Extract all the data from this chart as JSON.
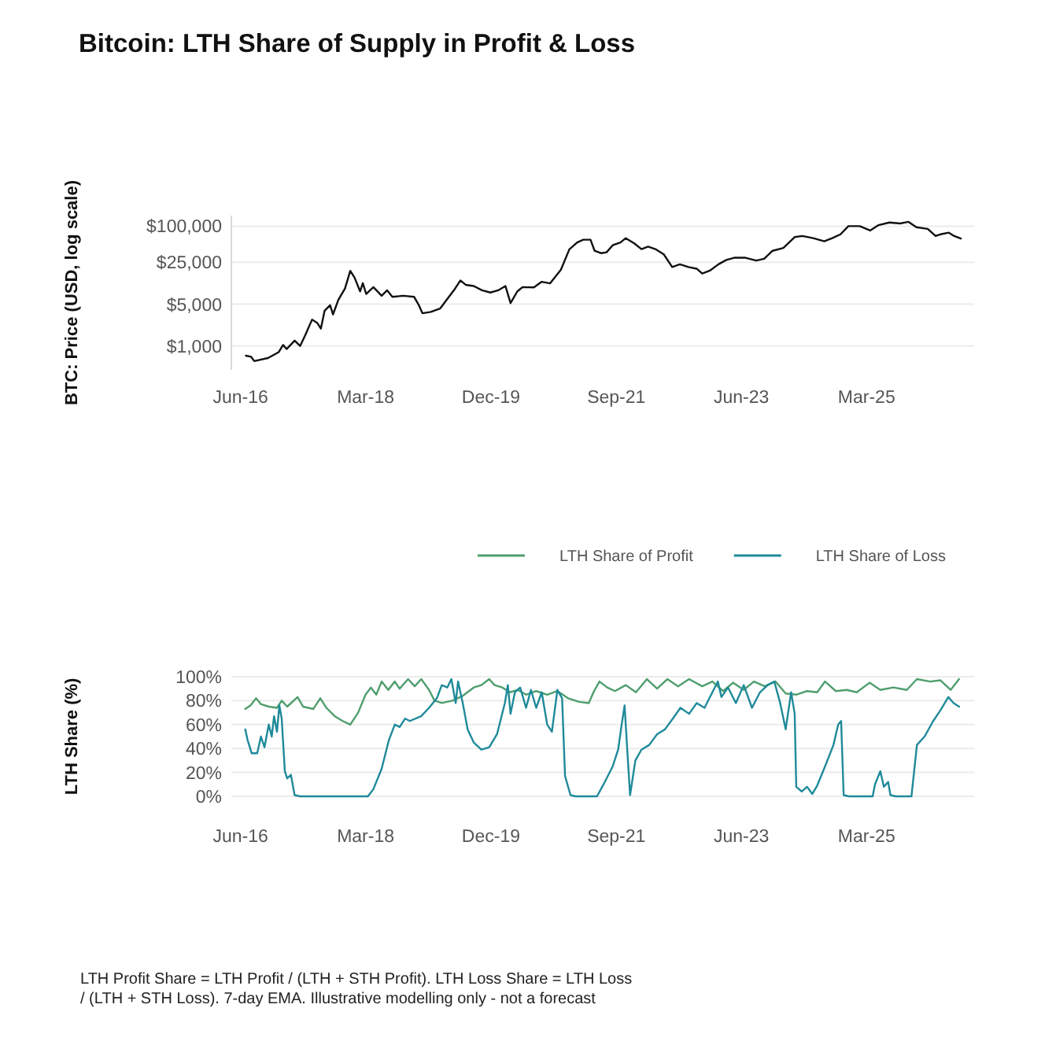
{
  "chart_data": [
    {
      "type": "line",
      "title": "Bitcoin: LTH Share of Supply in Profit & Loss",
      "ylabel": "BTC: Price (USD, log scale)",
      "log": true,
      "grid": "y",
      "color": "#111111",
      "xlim": [
        "2016-04-15",
        "2026-09-01"
      ],
      "ylim": [
        400,
        150000
      ],
      "xticks": [
        {
          "value": "2016-06-01",
          "label": "Jun-16"
        },
        {
          "value": "2018-03-01",
          "label": "Mar-18"
        },
        {
          "value": "2019-12-01",
          "label": "Dec-19"
        },
        {
          "value": "2021-09-01",
          "label": "Sep-21"
        },
        {
          "value": "2023-06-01",
          "label": "Jun-23"
        },
        {
          "value": "2025-03-01",
          "label": "Mar-25"
        }
      ],
      "yticks": [
        {
          "value": 1000,
          "label": "$1,000"
        },
        {
          "value": 5000,
          "label": "$5,000"
        },
        {
          "value": 25000,
          "label": "$25,000"
        },
        {
          "value": 100000,
          "label": "$100,000"
        }
      ],
      "x": [
        "2016-06-28",
        "2016-07-25",
        "2016-08-10",
        "2016-10-19",
        "2016-12-13",
        "2017-01-04",
        "2017-01-22",
        "2017-03-04",
        "2017-04-01",
        "2017-04-28",
        "2017-06-01",
        "2017-06-28",
        "2017-07-16",
        "2017-08-04",
        "2017-09-01",
        "2017-09-16",
        "2017-10-13",
        "2017-11-16",
        "2017-12-13",
        "2018-01-04",
        "2018-02-01",
        "2018-02-15",
        "2018-03-04",
        "2018-04-10",
        "2018-05-22",
        "2018-06-19",
        "2018-07-16",
        "2018-09-10",
        "2018-11-04",
        "2018-11-28",
        "2018-12-16",
        "2019-01-28",
        "2019-03-16",
        "2019-04-19",
        "2019-06-01",
        "2019-06-28",
        "2019-07-25",
        "2019-09-04",
        "2019-10-16",
        "2019-11-28",
        "2020-01-07",
        "2020-02-13",
        "2020-03-10",
        "2020-04-13",
        "2020-05-10",
        "2020-07-07",
        "2020-08-16",
        "2020-09-28",
        "2020-11-22",
        "2021-01-04",
        "2021-02-13",
        "2021-03-16",
        "2021-04-22",
        "2021-05-13",
        "2021-06-16",
        "2021-07-13",
        "2021-08-13",
        "2021-09-22",
        "2021-10-19",
        "2021-12-01",
        "2022-01-07",
        "2022-02-10",
        "2022-03-19",
        "2022-05-01",
        "2022-06-13",
        "2022-07-22",
        "2022-09-04",
        "2022-10-16",
        "2022-11-13",
        "2022-12-22",
        "2023-02-04",
        "2023-03-16",
        "2023-04-25",
        "2023-06-22",
        "2023-08-16",
        "2023-09-25",
        "2023-11-07",
        "2024-01-01",
        "2024-02-28",
        "2024-04-07",
        "2024-06-01",
        "2024-07-28",
        "2024-09-07",
        "2024-10-19",
        "2024-11-28",
        "2025-01-25",
        "2025-03-19",
        "2025-05-01",
        "2025-06-25",
        "2025-08-19",
        "2025-10-01",
        "2025-11-10",
        "2026-01-07",
        "2026-02-16",
        "2026-03-13",
        "2026-04-25",
        "2026-05-22",
        "2026-06-25"
      ],
      "values": [
        690,
        660,
        560,
        630,
        790,
        1040,
        890,
        1230,
        1000,
        1540,
        2760,
        2410,
        1950,
        3880,
        4800,
        3370,
        5870,
        9100,
        18000,
        13800,
        8150,
        11200,
        7400,
        9600,
        6900,
        8500,
        6600,
        6900,
        6600,
        4800,
        3520,
        3700,
        4200,
        5900,
        9100,
        12400,
        10500,
        10000,
        8500,
        7800,
        8500,
        10000,
        5200,
        8100,
        9600,
        9500,
        11800,
        11100,
        18800,
        41000,
        53500,
        59500,
        59500,
        38800,
        35400,
        36600,
        48000,
        53500,
        63000,
        51700,
        41400,
        45500,
        41400,
        33800,
        20800,
        23100,
        20800,
        19500,
        16200,
        18100,
        23100,
        27300,
        29700,
        29700,
        26600,
        28600,
        38800,
        43300,
        65700,
        68500,
        63000,
        55800,
        63000,
        73100,
        100000,
        100000,
        84600,
        104000,
        115000,
        111000,
        118000,
        96000,
        90000,
        68500,
        73100,
        77900,
        68500,
        62000
      ]
    },
    {
      "type": "line",
      "ylabel": "LTH Share (%)",
      "grid": "y",
      "legend": "top right",
      "xlim": [
        "2016-04-15",
        "2026-09-01"
      ],
      "ylim": [
        0,
        100
      ],
      "xticks": [
        {
          "value": "2016-06-01",
          "label": "Jun-16"
        },
        {
          "value": "2018-03-01",
          "label": "Mar-18"
        },
        {
          "value": "2019-12-01",
          "label": "Dec-19"
        },
        {
          "value": "2021-09-01",
          "label": "Sep-21"
        },
        {
          "value": "2023-06-01",
          "label": "Jun-23"
        },
        {
          "value": "2025-03-01",
          "label": "Mar-25"
        }
      ],
      "yticks": [
        {
          "value": 0,
          "label": "0%"
        },
        {
          "value": 20,
          "label": "20%"
        },
        {
          "value": 40,
          "label": "40%"
        },
        {
          "value": 60,
          "label": "60%"
        },
        {
          "value": 80,
          "label": "80%"
        },
        {
          "value": 100,
          "label": "100%"
        }
      ],
      "series": [
        {
          "name": "LTH Share of Profit",
          "color": "#4f9e6e",
          "x": [
            "2016-06-25",
            "2016-07-22",
            "2016-08-19",
            "2016-09-13",
            "2016-10-23",
            "2016-12-04",
            "2016-12-28",
            "2017-01-25",
            "2017-03-19",
            "2017-04-16",
            "2017-06-07",
            "2017-07-13",
            "2017-08-13",
            "2017-09-25",
            "2017-11-04",
            "2017-12-13",
            "2018-01-22",
            "2018-03-01",
            "2018-03-28",
            "2018-04-25",
            "2018-05-22",
            "2018-06-25",
            "2018-07-28",
            "2018-08-22",
            "2018-10-04",
            "2018-11-07",
            "2018-12-10",
            "2019-01-19",
            "2019-02-16",
            "2019-03-25",
            "2019-05-19",
            "2019-07-10",
            "2019-09-04",
            "2019-10-13",
            "2019-11-22",
            "2019-12-19",
            "2020-01-28",
            "2020-03-07",
            "2020-04-16",
            "2020-05-28",
            "2020-07-19",
            "2020-09-13",
            "2020-11-04",
            "2020-12-28",
            "2021-02-22",
            "2021-04-13",
            "2021-05-10",
            "2021-06-07",
            "2021-07-16",
            "2021-08-25",
            "2021-10-19",
            "2021-12-10",
            "2022-02-04",
            "2022-03-28",
            "2022-05-19",
            "2022-07-13",
            "2022-09-07",
            "2022-11-13",
            "2023-01-04",
            "2023-02-28",
            "2023-04-19",
            "2023-06-13",
            "2023-08-04",
            "2023-09-28",
            "2023-11-22",
            "2024-01-13",
            "2024-03-07",
            "2024-05-01",
            "2024-06-22",
            "2024-08-01",
            "2024-09-25",
            "2024-11-19",
            "2025-01-10",
            "2025-03-16",
            "2025-05-10",
            "2025-07-16",
            "2025-09-22",
            "2025-11-13",
            "2026-01-19",
            "2026-03-13",
            "2026-05-04",
            "2026-06-16"
          ],
          "values": [
            73,
            76,
            82,
            77,
            75,
            74,
            80,
            75,
            83,
            75,
            73,
            82,
            74,
            67,
            63,
            60,
            70,
            85,
            91,
            85,
            96,
            89,
            96,
            90,
            98,
            92,
            98,
            89,
            80,
            78,
            80,
            84,
            91,
            93,
            98,
            93,
            91,
            87,
            89,
            85,
            88,
            85,
            88,
            82,
            79,
            78,
            88,
            96,
            91,
            88,
            93,
            87,
            98,
            90,
            98,
            92,
            98,
            92,
            96,
            88,
            95,
            89,
            96,
            92,
            96,
            86,
            85,
            88,
            87,
            96,
            88,
            89,
            87,
            95,
            89,
            91,
            89,
            98,
            96,
            97,
            89,
            98
          ]
        },
        {
          "name": "LTH Share of Loss",
          "color": "#1f8a9a",
          "x": [
            "2016-06-25",
            "2016-07-07",
            "2016-07-28",
            "2016-08-25",
            "2016-09-13",
            "2016-10-01",
            "2016-10-23",
            "2016-11-07",
            "2016-11-19",
            "2016-12-04",
            "2016-12-16",
            "2016-12-28",
            "2017-01-13",
            "2017-01-25",
            "2017-02-13",
            "2017-03-04",
            "2017-04-01",
            "2018-03-13",
            "2018-04-10",
            "2018-05-22",
            "2018-06-28",
            "2018-07-28",
            "2018-08-22",
            "2018-09-19",
            "2018-10-13",
            "2018-12-10",
            "2019-01-19",
            "2019-02-28",
            "2019-03-25",
            "2019-04-22",
            "2019-05-13",
            "2019-06-04",
            "2019-06-16",
            "2019-07-10",
            "2019-08-04",
            "2019-09-04",
            "2019-10-13",
            "2019-11-22",
            "2020-01-01",
            "2020-02-10",
            "2020-02-25",
            "2020-03-10",
            "2020-04-01",
            "2020-04-28",
            "2020-05-28",
            "2020-06-22",
            "2020-07-19",
            "2020-08-16",
            "2020-09-13",
            "2020-10-07",
            "2020-11-04",
            "2020-11-28",
            "2020-12-13",
            "2021-01-10",
            "2021-02-04",
            "2021-05-25",
            "2021-07-04",
            "2021-08-13",
            "2021-09-10",
            "2021-09-28",
            "2021-10-13",
            "2021-10-25",
            "2021-11-10",
            "2021-12-07",
            "2022-01-07",
            "2022-02-16",
            "2022-03-28",
            "2022-05-07",
            "2022-06-16",
            "2022-07-25",
            "2022-09-07",
            "2022-10-16",
            "2022-11-25",
            "2023-01-04",
            "2023-02-01",
            "2023-02-19",
            "2023-03-25",
            "2023-05-04",
            "2023-06-13",
            "2023-07-25",
            "2023-09-04",
            "2023-10-13",
            "2023-11-16",
            "2023-12-16",
            "2024-01-13",
            "2024-02-10",
            "2024-02-28",
            "2024-03-07",
            "2024-04-04",
            "2024-05-01",
            "2024-05-28",
            "2024-06-22",
            "2024-08-01",
            "2024-09-13",
            "2024-10-07",
            "2024-10-22",
            "2024-11-04",
            "2024-12-01",
            "2025-04-01",
            "2025-04-13",
            "2025-05-10",
            "2025-05-28",
            "2025-06-19",
            "2025-07-01",
            "2025-07-28",
            "2025-10-16",
            "2025-11-13",
            "2025-12-22",
            "2026-02-04",
            "2026-03-13",
            "2026-04-22",
            "2026-05-19",
            "2026-06-16"
          ],
          "values": [
            56,
            47,
            36,
            36,
            50,
            41,
            60,
            50,
            67,
            54,
            76,
            65,
            21,
            15,
            18,
            1,
            0,
            0,
            6,
            23,
            47,
            60,
            58,
            65,
            63,
            67,
            74,
            82,
            93,
            91,
            98,
            78,
            96,
            78,
            56,
            45,
            39,
            41,
            52,
            78,
            93,
            69,
            87,
            91,
            74,
            89,
            74,
            87,
            60,
            54,
            89,
            82,
            17,
            1,
            0,
            0,
            12,
            25,
            39,
            60,
            76,
            43,
            1,
            30,
            39,
            43,
            52,
            56,
            65,
            74,
            69,
            78,
            74,
            87,
            96,
            83,
            91,
            78,
            93,
            74,
            87,
            93,
            96,
            78,
            56,
            87,
            69,
            8,
            4,
            8,
            2,
            9,
            25,
            43,
            60,
            63,
            1,
            0,
            0,
            10,
            21,
            8,
            12,
            1,
            0,
            0,
            43,
            50,
            63,
            72,
            83,
            78,
            75
          ]
        }
      ],
      "annotations": [
        "LTH Profit Share = LTH Profit / (LTH + STH Profit). LTH Loss Share = LTH Loss / (LTH + STH Loss). 7-day EMA. Illustrative modelling only - not a forecast"
      ]
    }
  ]
}
